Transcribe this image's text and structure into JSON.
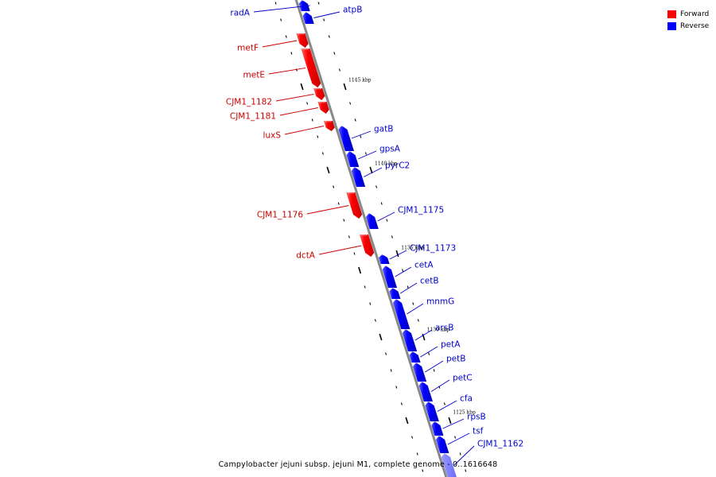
{
  "legend": {
    "forward_label": "Forward",
    "reverse_label": "Reverse",
    "forward_color": "#ff0000",
    "reverse_color": "#0000ff"
  },
  "caption": "Campylobacter jejuni subsp. jejuni M1, complete genome - 0..1616648",
  "colors": {
    "backbone": "#888888",
    "forward_label": "#cc0000",
    "reverse_label": "#0000cc"
  },
  "kbp_markers": [
    "1145 kbp",
    "1140 kbp",
    "1135 kbp",
    "1130 kbp",
    "1125 kbp"
  ],
  "genes": [
    {
      "name": "radA",
      "strand": "reverse"
    },
    {
      "name": "atpB",
      "strand": "reverse"
    },
    {
      "name": "metF",
      "strand": "forward"
    },
    {
      "name": "metE",
      "strand": "forward"
    },
    {
      "name": "CJM1_1182",
      "strand": "forward"
    },
    {
      "name": "CJM1_1181",
      "strand": "forward"
    },
    {
      "name": "luxS",
      "strand": "forward"
    },
    {
      "name": "gatB",
      "strand": "reverse"
    },
    {
      "name": "gpsA",
      "strand": "reverse"
    },
    {
      "name": "pyrC2",
      "strand": "reverse"
    },
    {
      "name": "CJM1_1176",
      "strand": "forward"
    },
    {
      "name": "CJM1_1175",
      "strand": "reverse"
    },
    {
      "name": "dctA",
      "strand": "forward"
    },
    {
      "name": "CJM1_1173",
      "strand": "reverse"
    },
    {
      "name": "cetA",
      "strand": "reverse"
    },
    {
      "name": "cetB",
      "strand": "reverse"
    },
    {
      "name": "mnmG",
      "strand": "reverse"
    },
    {
      "name": "arsB",
      "strand": "reverse"
    },
    {
      "name": "petA",
      "strand": "reverse"
    },
    {
      "name": "petB",
      "strand": "reverse"
    },
    {
      "name": "petC",
      "strand": "reverse"
    },
    {
      "name": "cfa",
      "strand": "reverse"
    },
    {
      "name": "rpsB",
      "strand": "reverse"
    },
    {
      "name": "tsf",
      "strand": "reverse"
    },
    {
      "name": "CJM1_1162",
      "strand": "reverse"
    }
  ]
}
